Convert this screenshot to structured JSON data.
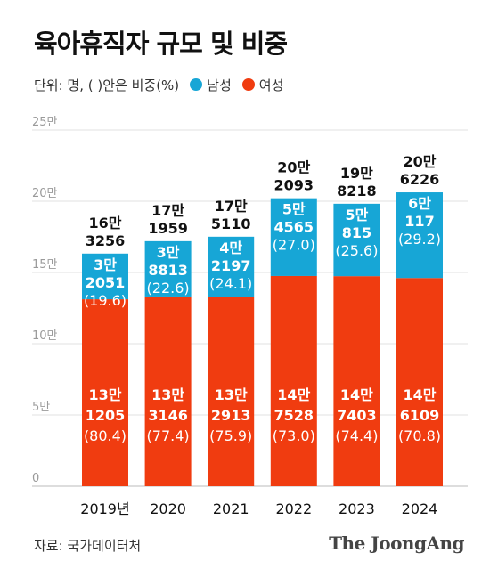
{
  "title": "육아휴직자 규모 및 비중",
  "subtitle": "단위: 명, ( )안은 비중(%)",
  "legend": [
    {
      "label": "남성",
      "color": "#17a6d6"
    },
    {
      "label": "여성",
      "color": "#f03c10"
    }
  ],
  "source": "자료: 국가데이터처",
  "brand": "The JoongAng",
  "chart_data": {
    "type": "bar",
    "stacked": true,
    "ylim": [
      0,
      250000
    ],
    "yticks": [
      {
        "value": 0,
        "label": "0"
      },
      {
        "value": 50000,
        "label": "5만"
      },
      {
        "value": 100000,
        "label": "10만"
      },
      {
        "value": 150000,
        "label": "15만"
      },
      {
        "value": 200000,
        "label": "20만"
      },
      {
        "value": 250000,
        "label": "25만"
      }
    ],
    "grid": true,
    "categories": [
      "2019년",
      "2020",
      "2021",
      "2022",
      "2023",
      "2024"
    ],
    "series": [
      {
        "name": "여성",
        "color": "#f03c10",
        "values": [
          131205,
          133146,
          132913,
          147528,
          147403,
          146109
        ],
        "label_top": [
          "13만",
          "13만",
          "13만",
          "14만",
          "14만",
          "14만"
        ],
        "label_mid": [
          "1205",
          "3146",
          "2913",
          "7528",
          "7403",
          "6109"
        ],
        "label_pct": [
          "(80.4)",
          "(77.4)",
          "(75.9)",
          "(73.0)",
          "(74.4)",
          "(70.8)"
        ]
      },
      {
        "name": "남성",
        "color": "#17a6d6",
        "values": [
          32051,
          38813,
          42197,
          54565,
          50815,
          60117
        ],
        "label_top": [
          "3만",
          "3만",
          "4만",
          "5만",
          "5만",
          "6만"
        ],
        "label_mid": [
          "2051",
          "8813",
          "2197",
          "4565",
          "815",
          "117"
        ],
        "label_pct": [
          "(19.6)",
          "(22.6)",
          "(24.1)",
          "(27.0)",
          "(25.6)",
          "(29.2)"
        ]
      }
    ],
    "totals_top": [
      "16만",
      "17만",
      "17만",
      "20만",
      "19만",
      "20만"
    ],
    "totals_bottom": [
      "3256",
      "1959",
      "5110",
      "2093",
      "8218",
      "6226"
    ]
  }
}
